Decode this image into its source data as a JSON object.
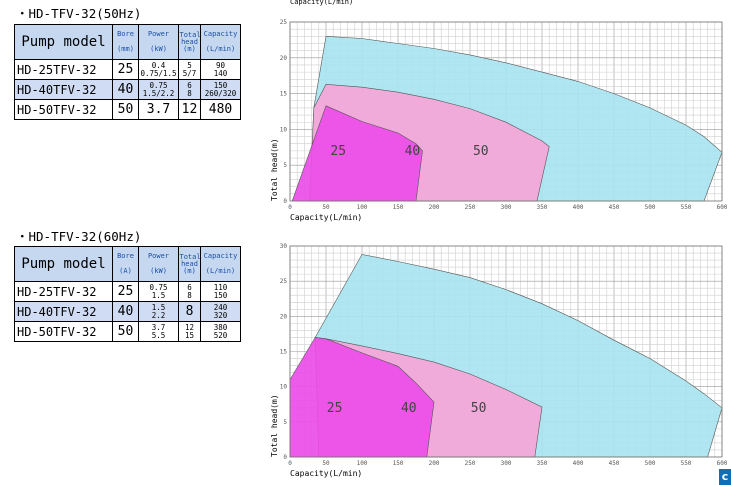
{
  "top_label": "Capacity(L/min)",
  "sections": [
    {
      "title": "・HD-TFV-32(50Hz)",
      "headers": {
        "model": "Pump model",
        "bore": "Bore",
        "bore_unit": "(mm)",
        "power": "Power",
        "power_unit": "(kW)",
        "head": "Total head",
        "head_unit": "(m)",
        "capacity": "Capacity",
        "capacity_unit": "(L/min)"
      },
      "rows": [
        {
          "model": "HD-25TFV-32",
          "bore": "25",
          "power": "0.4\n0.75/1.5",
          "head": "5\n5/7",
          "capacity": "90\n140"
        },
        {
          "model": "HD-40TFV-32",
          "bore": "40",
          "power": "0.75\n1.5/2.2",
          "head": "6\n8",
          "capacity": "150\n260/320"
        },
        {
          "model": "HD-50TFV-32",
          "bore": "50",
          "power": "3.7",
          "head": "12",
          "capacity": "480"
        }
      ]
    },
    {
      "title": "・HD-TFV-32(60Hz)",
      "headers": {
        "model": "Pump model",
        "bore": "Bore",
        "bore_unit": "(A)",
        "power": "Power",
        "power_unit": "(kW)",
        "head": "Total head",
        "head_unit": "(m)",
        "capacity": "Capacity",
        "capacity_unit": "(L/min)"
      },
      "rows": [
        {
          "model": "HD-25TFV-32",
          "bore": "25",
          "power": "0.75\n1.5",
          "head": "6\n8",
          "capacity": "110\n150"
        },
        {
          "model": "HD-40TFV-32",
          "bore": "40",
          "power": "1.5\n2.2",
          "head": "8",
          "capacity": "240\n320"
        },
        {
          "model": "HD-50TFV-32",
          "bore": "50",
          "power": "3.7\n5.5",
          "head": "12\n15",
          "capacity": "380\n520"
        }
      ]
    }
  ],
  "chart_data": [
    {
      "type": "area",
      "title": "",
      "xlabel": "Capacity(L/min)",
      "ylabel": "Total head(m)",
      "xlim": [
        0,
        600
      ],
      "ylim": [
        0,
        25
      ],
      "xticks": [
        0,
        50,
        100,
        150,
        200,
        250,
        300,
        350,
        400,
        450,
        500,
        550,
        600
      ],
      "yticks": [
        0,
        5,
        10,
        15,
        20,
        25
      ],
      "grid": true,
      "series": [
        {
          "name": "50",
          "color": "#a8e4f0",
          "label_at": [
            265,
            6.4
          ],
          "points": [
            [
              33,
              13
            ],
            [
              50,
              23
            ],
            [
              100,
              22.7
            ],
            [
              150,
              22
            ],
            [
              200,
              21.3
            ],
            [
              250,
              20.4
            ],
            [
              300,
              19.3
            ],
            [
              350,
              18
            ],
            [
              400,
              16.7
            ],
            [
              450,
              15
            ],
            [
              500,
              13
            ],
            [
              550,
              10.6
            ],
            [
              575,
              9
            ],
            [
              600,
              6.8
            ],
            [
              575,
              0
            ],
            [
              30,
              0
            ]
          ]
        },
        {
          "name": "40",
          "color": "#f5a6d8",
          "label_at": [
            170,
            6.4
          ],
          "points": [
            [
              33,
              13
            ],
            [
              50,
              16.3
            ],
            [
              100,
              15.9
            ],
            [
              150,
              15.2
            ],
            [
              200,
              14.2
            ],
            [
              250,
              12.9
            ],
            [
              300,
              11
            ],
            [
              350,
              8.4
            ],
            [
              360,
              7.6
            ],
            [
              343,
              0
            ],
            [
              27,
              0
            ]
          ]
        },
        {
          "name": "25",
          "color": "#ec4de8",
          "label_at": [
            67,
            6.4
          ],
          "points": [
            [
              3,
              0
            ],
            [
              50,
              13.3
            ],
            [
              100,
              11.1
            ],
            [
              150,
              9.5
            ],
            [
              175,
              8
            ],
            [
              184,
              7
            ],
            [
              175,
              0
            ]
          ]
        }
      ]
    },
    {
      "type": "area",
      "title": "",
      "xlabel": "Capacity(L/min)",
      "ylabel": "Total head(m)",
      "xlim": [
        0,
        600
      ],
      "ylim": [
        0,
        30
      ],
      "xticks": [
        0,
        50,
        100,
        150,
        200,
        250,
        300,
        350,
        400,
        450,
        500,
        550,
        600
      ],
      "yticks": [
        0,
        5,
        10,
        15,
        20,
        25,
        30
      ],
      "grid": true,
      "series": [
        {
          "name": "50",
          "color": "#a8e4f0",
          "label_at": [
            262,
            6.4
          ],
          "points": [
            [
              35,
              17
            ],
            [
              100,
              28.8
            ],
            [
              150,
              27.8
            ],
            [
              200,
              26.7
            ],
            [
              250,
              25.5
            ],
            [
              300,
              23.8
            ],
            [
              350,
              21.8
            ],
            [
              400,
              19.4
            ],
            [
              450,
              16.6
            ],
            [
              500,
              14
            ],
            [
              550,
              10.8
            ],
            [
              575,
              9
            ],
            [
              600,
              7
            ],
            [
              580,
              0
            ],
            [
              40,
              0
            ]
          ]
        },
        {
          "name": "40",
          "color": "#f5a6d8",
          "label_at": [
            165,
            6.4
          ],
          "points": [
            [
              35,
              17
            ],
            [
              50,
              16.8
            ],
            [
              100,
              15.8
            ],
            [
              150,
              14.7
            ],
            [
              200,
              13.5
            ],
            [
              250,
              11.8
            ],
            [
              300,
              9.6
            ],
            [
              350,
              7.1
            ],
            [
              340,
              0
            ],
            [
              40,
              0
            ]
          ]
        },
        {
          "name": "25",
          "color": "#ec4de8",
          "label_at": [
            62,
            6.4
          ],
          "points": [
            [
              0,
              11
            ],
            [
              35,
              17
            ],
            [
              50,
              16.8
            ],
            [
              100,
              14.8
            ],
            [
              150,
              12.9
            ],
            [
              175,
              10.5
            ],
            [
              200,
              7.8
            ],
            [
              190,
              0
            ],
            [
              0,
              0
            ]
          ]
        }
      ]
    }
  ]
}
